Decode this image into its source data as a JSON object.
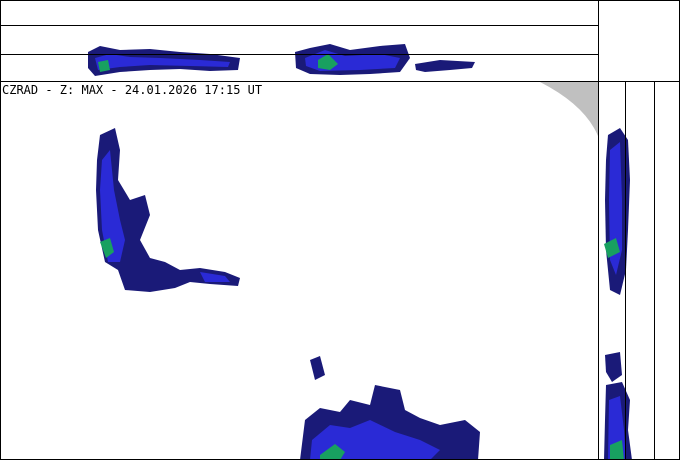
{
  "header": {
    "title": "CZRAD - Z: MAX - 24.01.2026 17:15 UT"
  }
}
